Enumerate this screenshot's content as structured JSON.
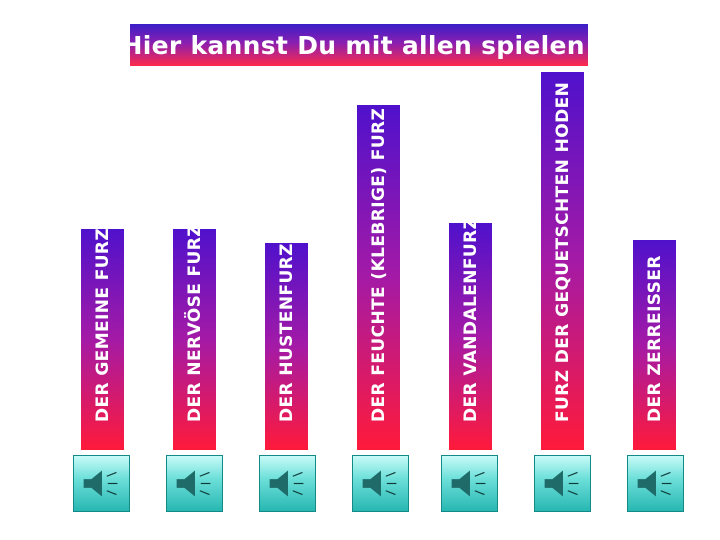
{
  "title": "Hier kannst Du mit allen spielen!",
  "sounds": [
    {
      "label": "DER GEMEINE FURZ"
    },
    {
      "label": "DER NERVÖSE FURZ"
    },
    {
      "label": "DER HUSTENFURZ"
    },
    {
      "label": "DER FEUCHTE (KLEBRIGE) FURZ"
    },
    {
      "label": "DER VANDALENFURZ"
    },
    {
      "label": "FURZ DER GEQUETSCHTEN HODEN"
    },
    {
      "label": "DER ZERREISSER"
    }
  ],
  "icons": {
    "speaker": "speaker-icon"
  }
}
